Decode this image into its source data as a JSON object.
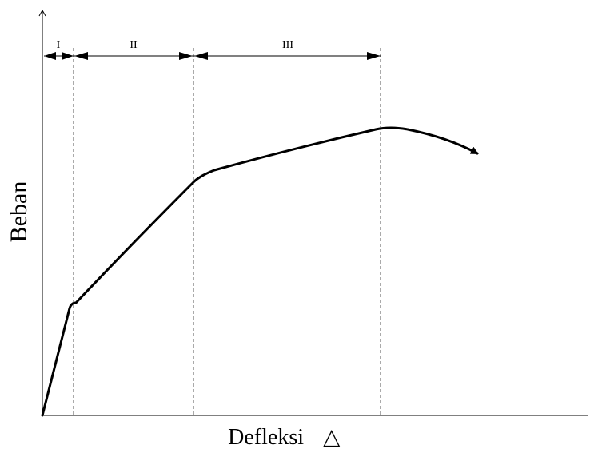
{
  "diagram": {
    "y_axis_label": "Beban",
    "x_axis_label": "Defleksi",
    "delta_symbol": "△",
    "regions": [
      {
        "label": "I"
      },
      {
        "label": "II"
      },
      {
        "label": "III"
      }
    ],
    "colors": {
      "line": "#000000",
      "guide": "#555555",
      "background": "#ffffff"
    }
  }
}
